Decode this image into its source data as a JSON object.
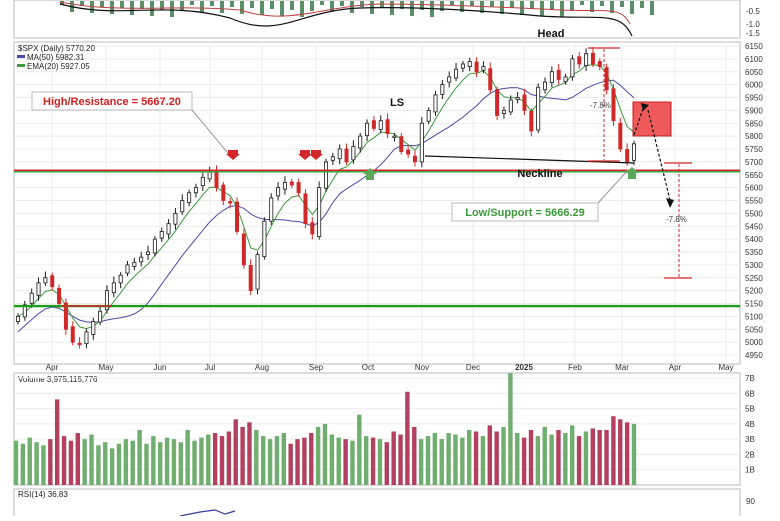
{
  "chart_data": {
    "type": "candlestick",
    "title": "$SPX (Daily) 5770.20",
    "legend": [
      {
        "name": "MA(50) 5982.31",
        "color": "#4a4aa8"
      },
      {
        "name": "EMA(20) 5927.05",
        "color": "#3c9a3c"
      }
    ],
    "x_tick_labels": [
      "Apr",
      "May",
      "Jun",
      "Jul",
      "Aug",
      "Sep",
      "Oct",
      "Nov",
      "Dec",
      "2025",
      "Feb",
      "Mar",
      "Apr",
      "May"
    ],
    "y_tick_labels": [
      "4950",
      "5000",
      "5050",
      "5100",
      "5150",
      "5200",
      "5250",
      "5300",
      "5350",
      "5400",
      "5450",
      "5500",
      "5550",
      "5600",
      "5650",
      "5700",
      "5750",
      "5800",
      "5850",
      "5900",
      "5950",
      "6000",
      "6050",
      "6100",
      "6150"
    ],
    "ylim": [
      4950,
      6150
    ],
    "top_panel_ticks": [
      "-0.5",
      "-1.0",
      "-1.5"
    ],
    "annotations": {
      "resistance_label": "High/Resistance = 5667.20",
      "support_label": "Low/Support = 5666.29",
      "ls": "LS",
      "head": "Head",
      "neckline": "Neckline",
      "drop_pct_1": "-7.8%",
      "drop_pct_2": "-7.8%"
    },
    "levels": {
      "resistance": 5667.2,
      "support": 5666.29,
      "lower_support": 5140
    },
    "close_series": [
      5100,
      5145,
      5190,
      5230,
      5250,
      5215,
      5150,
      5050,
      5000,
      4990,
      5040,
      5080,
      5120,
      5200,
      5230,
      5260,
      5300,
      5310,
      5330,
      5350,
      5400,
      5430,
      5460,
      5500,
      5550,
      5580,
      5600,
      5640,
      5660,
      5600,
      5550,
      5540,
      5430,
      5300,
      5200,
      5340,
      5470,
      5560,
      5600,
      5620,
      5610,
      5580,
      5460,
      5420,
      5600,
      5700,
      5720,
      5750,
      5700,
      5760,
      5800,
      5850,
      5830,
      5860,
      5810,
      5800,
      5740,
      5730,
      5700,
      5850,
      5900,
      5960,
      6000,
      6030,
      6060,
      6080,
      6090,
      6050,
      6070,
      5980,
      5880,
      5900,
      5940,
      5950,
      5900,
      5820,
      5990,
      6010,
      6050,
      6020,
      6030,
      6100,
      6080,
      6120,
      6080,
      6070,
      5980,
      5860,
      5750,
      5700,
      5770
    ],
    "volume": {
      "label": "Volume 3,975,115,776",
      "y_tick_labels": [
        "7B",
        "6B",
        "5B",
        "4B",
        "3B",
        "2B",
        "1B"
      ],
      "ylim": [
        0,
        7
      ],
      "values": [
        2.9,
        2.7,
        3.1,
        2.8,
        2.6,
        3.0,
        5.6,
        3.2,
        2.9,
        3.4,
        3.0,
        3.3,
        2.6,
        2.8,
        2.4,
        2.7,
        3.0,
        2.9,
        3.6,
        2.7,
        3.2,
        2.8,
        3.1,
        3.0,
        2.8,
        3.6,
        2.9,
        3.1,
        3.3,
        3.4,
        3.2,
        3.5,
        4.3,
        3.8,
        4.1,
        3.6,
        3.2,
        3.0,
        3.2,
        3.4,
        2.7,
        3.0,
        3.1,
        3.4,
        3.8,
        4.0,
        3.3,
        3.1,
        3.0,
        2.9,
        4.6,
        3.2,
        3.1,
        3.0,
        2.8,
        3.5,
        3.3,
        6.1,
        3.8,
        3.0,
        3.2,
        3.4,
        3.0,
        3.4,
        3.3,
        3.1,
        3.6,
        3.5,
        3.2,
        3.9,
        3.5,
        3.8,
        7.3,
        3.4,
        3.1,
        3.6,
        3.2,
        3.8,
        3.3,
        3.6,
        3.4,
        3.9,
        3.2,
        3.5,
        3.7,
        3.6,
        3.6,
        4.5,
        4.3,
        4.1,
        4.0
      ]
    },
    "rsi": {
      "label": "RSI(14) 36.83",
      "y_tick_labels": [
        "90"
      ]
    }
  }
}
